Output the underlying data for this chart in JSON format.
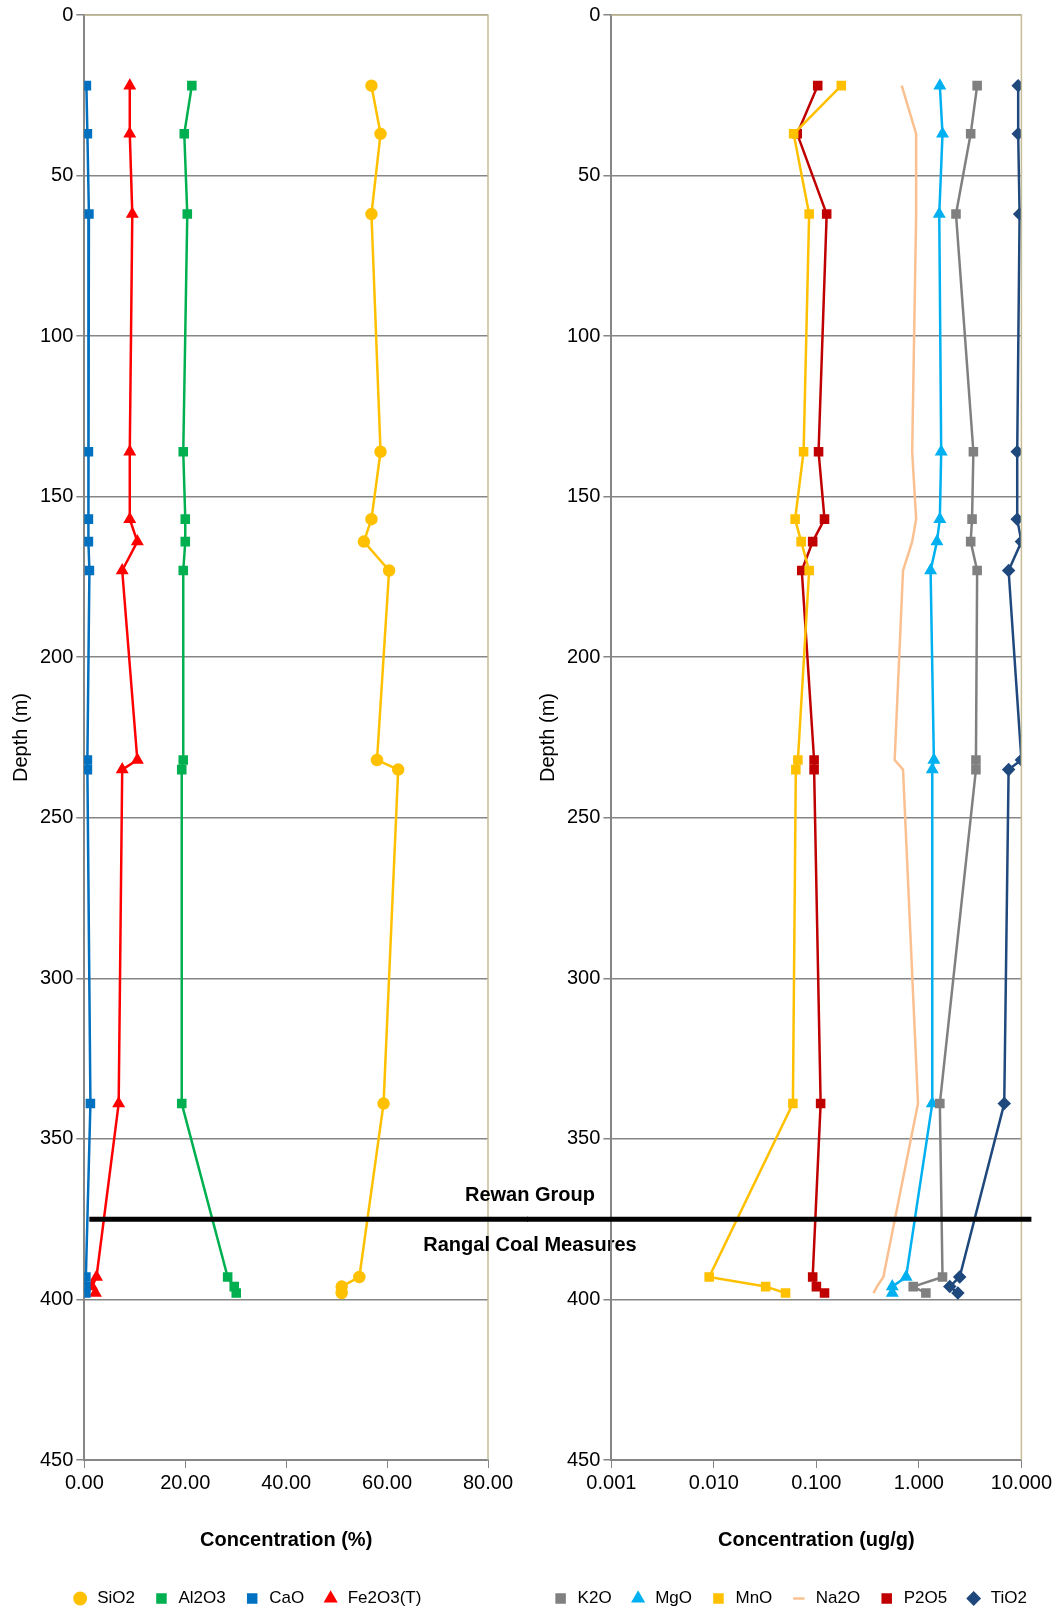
{
  "chart_data": [
    {
      "type": "line",
      "xlabel": "Concentration (%)",
      "ylabel": "Depth (m)",
      "xlim": [
        0,
        80
      ],
      "xticks": [
        {
          "value": 0,
          "label": "0.00"
        },
        {
          "value": 20,
          "label": "20.00"
        },
        {
          "value": 40,
          "label": "40.00"
        },
        {
          "value": 60,
          "label": "60.00"
        },
        {
          "value": 80,
          "label": "80.00"
        }
      ],
      "ylim": [
        450,
        0
      ],
      "yticks": [
        0,
        50,
        100,
        150,
        200,
        250,
        300,
        350,
        400,
        450
      ],
      "grid": "y",
      "legend": "bottom",
      "line_style": "solid",
      "series": [
        {
          "name": "SiO2",
          "color": "#ffc000",
          "marker": "circle",
          "x": [
            56.9,
            58.7,
            56.9,
            58.7,
            56.9,
            55.4,
            60.4,
            58,
            62.2,
            59.3,
            54.5,
            51,
            51
          ],
          "values": [
            22,
            37,
            62,
            136,
            157,
            164,
            173,
            232,
            235,
            339,
            393,
            396,
            398
          ]
        },
        {
          "name": "Al2O3",
          "color": "#00b050",
          "marker": "square",
          "x": [
            21.3,
            19.8,
            20.4,
            19.6,
            20,
            20,
            19.6,
            19.6,
            19.3,
            19.3,
            28.4,
            29.7,
            30.1
          ],
          "values": [
            22,
            37,
            62,
            136,
            157,
            164,
            173,
            232,
            235,
            339,
            393,
            396,
            398
          ]
        },
        {
          "name": "CaO",
          "color": "#0070c0",
          "marker": "square",
          "x": [
            0.4,
            0.6,
            0.9,
            0.8,
            0.8,
            0.8,
            1,
            0.6,
            0.6,
            1.2,
            0.3,
            0.3,
            0.3
          ],
          "values": [
            22,
            37,
            62,
            136,
            157,
            164,
            173,
            232,
            235,
            339,
            393,
            396,
            398
          ]
        },
        {
          "name": "Fe2O3(T)",
          "color": "#ff0000",
          "marker": "triangle",
          "x": [
            9,
            9,
            9.5,
            9,
            9,
            10.5,
            7.5,
            10.5,
            7.5,
            6.8,
            2.4,
            1.5,
            2.2
          ],
          "values": [
            22,
            37,
            62,
            136,
            157,
            164,
            173,
            232,
            235,
            339,
            393,
            396,
            398
          ]
        }
      ],
      "ref_lines": [
        {
          "axis": "y",
          "value": 375,
          "color": "#000000"
        }
      ],
      "annotations": [
        "Rewan Group",
        "Rangal Coal Measures"
      ]
    },
    {
      "type": "line",
      "xlabel": "Concentration (ug/g)",
      "ylabel": "Depth (m)",
      "log": "x",
      "xlim": [
        0.001,
        10
      ],
      "xticks": [
        {
          "value": 0.001,
          "label": "0.001"
        },
        {
          "value": 0.01,
          "label": "0.010"
        },
        {
          "value": 0.1,
          "label": "0.100"
        },
        {
          "value": 1,
          "label": "1.000"
        },
        {
          "value": 10,
          "label": "10.000"
        }
      ],
      "ylim": [
        450,
        0
      ],
      "yticks": [
        0,
        50,
        100,
        150,
        200,
        250,
        300,
        350,
        400,
        450
      ],
      "grid": "y",
      "legend": "bottom",
      "line_style": "solid",
      "series": [
        {
          "name": "K2O",
          "color": "#808080",
          "marker": "square",
          "x": [
            3.7,
            3.2,
            2.3,
            3.4,
            3.3,
            3.2,
            3.7,
            3.6,
            3.6,
            1.6,
            1.7,
            0.88,
            1.17
          ],
          "values": [
            22,
            37,
            62,
            136,
            157,
            164,
            173,
            232,
            235,
            339,
            393,
            396,
            398
          ]
        },
        {
          "name": "MgO",
          "color": "#00b0f0",
          "marker": "triangle",
          "x": [
            1.6,
            1.7,
            1.58,
            1.65,
            1.6,
            1.5,
            1.3,
            1.4,
            1.35,
            1.35,
            0.75,
            0.55,
            0.55
          ],
          "values": [
            22,
            37,
            62,
            136,
            157,
            164,
            173,
            232,
            235,
            339,
            393,
            396,
            398
          ]
        },
        {
          "name": "MnO",
          "color": "#ffc000",
          "marker": "square",
          "x": [
            0.175,
            0.06,
            0.085,
            0.075,
            0.062,
            0.071,
            0.085,
            0.066,
            0.063,
            0.059,
            0.009,
            0.032,
            0.05
          ],
          "values": [
            22,
            37,
            62,
            136,
            157,
            164,
            173,
            232,
            235,
            339,
            393,
            396,
            398
          ]
        },
        {
          "name": "Na2O",
          "color": "#fac090",
          "marker": "none",
          "x": [
            0.68,
            0.94,
            0.94,
            0.86,
            0.94,
            0.86,
            0.7,
            0.58,
            0.7,
            0.98,
            0.45,
            0.39,
            0.36
          ],
          "values": [
            22,
            37,
            62,
            136,
            157,
            164,
            173,
            232,
            235,
            339,
            393,
            396,
            398
          ]
        },
        {
          "name": "P2O5",
          "color": "#c00000",
          "marker": "square",
          "x": [
            0.103,
            0.065,
            0.126,
            0.105,
            0.12,
            0.092,
            0.072,
            0.095,
            0.095,
            0.11,
            0.092,
            0.1,
            0.12
          ],
          "values": [
            22,
            37,
            62,
            136,
            157,
            164,
            173,
            232,
            235,
            339,
            393,
            396,
            398
          ]
        },
        {
          "name": "TiO2",
          "color": "#1f497d",
          "marker": "diamond",
          "x": [
            9.3,
            9.3,
            9.6,
            9.1,
            9.1,
            10,
            7.5,
            10,
            7.5,
            6.8,
            2.5,
            2,
            2.4
          ],
          "values": [
            22,
            37,
            62,
            136,
            157,
            164,
            173,
            232,
            235,
            339,
            393,
            396,
            398
          ]
        }
      ],
      "ref_lines": [
        {
          "axis": "y",
          "value": 375,
          "color": "#000000"
        }
      ]
    }
  ]
}
